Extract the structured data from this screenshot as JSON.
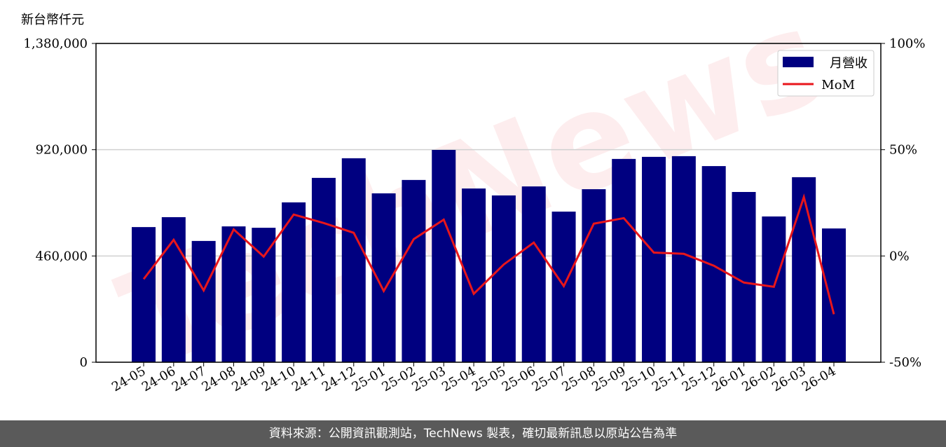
{
  "chart_data": {
    "type": "bar_line",
    "y_label": "新台幣仟元",
    "watermark": "TechNews",
    "categories": [
      "24-05",
      "24-06",
      "24-07",
      "24-08",
      "24-09",
      "24-10",
      "24-11",
      "24-12",
      "25-01",
      "25-02",
      "25-03",
      "25-04",
      "25-05",
      "25-06",
      "25-07",
      "25-08",
      "25-09",
      "25-10",
      "25-11",
      "25-12",
      "26-01",
      "26-02",
      "26-03",
      "26-04"
    ],
    "series": [
      {
        "name": "月營收",
        "type": "bar",
        "color": "#000080",
        "values": [
          585000,
          628000,
          525000,
          588000,
          582000,
          692000,
          798000,
          883000,
          731000,
          789000,
          919000,
          752000,
          722000,
          761000,
          652000,
          749000,
          880000,
          889000,
          892000,
          849000,
          737000,
          631000,
          801000,
          579000
        ]
      },
      {
        "name": "MoM",
        "type": "line",
        "axis": "y2",
        "color": "#e8161b",
        "values": [
          -10.9,
          7.6,
          -16.2,
          12.5,
          -0.3,
          19.5,
          15.5,
          10.9,
          -16.5,
          7.9,
          17.1,
          -17.8,
          -4.0,
          6.3,
          -14.2,
          15.2,
          17.8,
          1.6,
          1.0,
          -4.6,
          -12.5,
          -14.5,
          27.7,
          -27.4
        ]
      }
    ],
    "ylim": [
      0,
      1380000
    ],
    "yticks": [
      0,
      {
        "value": 460000,
        "label": "460,000"
      },
      {
        "value": 920000,
        "label": "920,000"
      },
      {
        "value": 1380000,
        "label": "1,380,000"
      }
    ],
    "y2lim": [
      -50,
      100
    ],
    "y2ticks": [
      {
        "value": -50,
        "label": "-50%"
      },
      {
        "value": 0,
        "label": "0%"
      },
      {
        "value": 50,
        "label": "50%"
      },
      {
        "value": 100,
        "label": "100%"
      }
    ],
    "grid": true,
    "legend": "upper right",
    "footer": "資料來源：公開資訊觀測站，TechNews 製表，確切最新訊息以原站公告為準"
  }
}
